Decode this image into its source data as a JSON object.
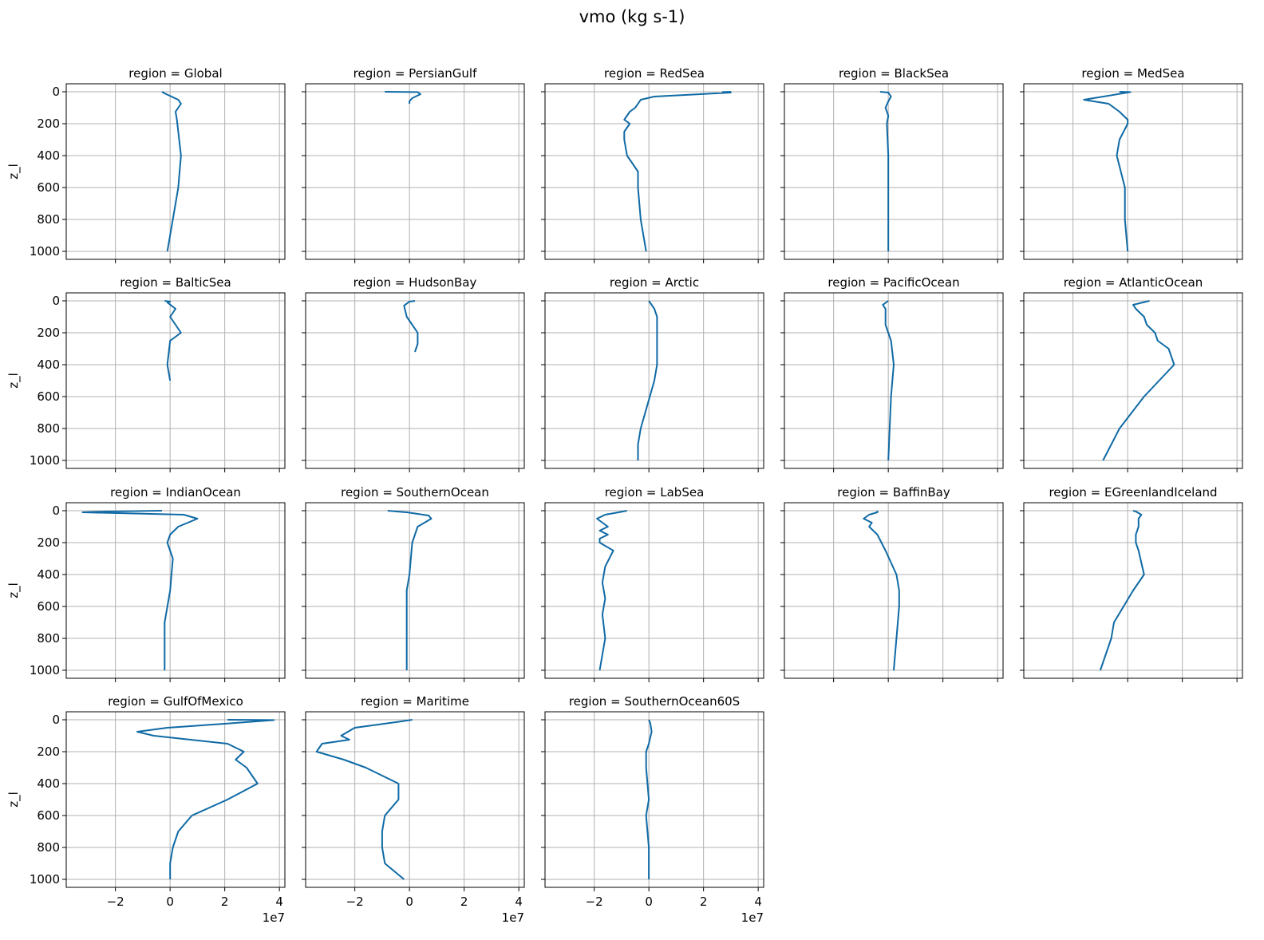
{
  "suptitle": "vmo (kg s-1)",
  "x_offset_label": "1e7",
  "chart_data": {
    "type": "line",
    "layout": "facet grid, 4 rows x 5 columns, shared axes",
    "xlim": [
      -3.8,
      4.2
    ],
    "ylim": [
      1050,
      -50
    ],
    "y_inverted": true,
    "xticks": [
      -2,
      0,
      2,
      4
    ],
    "xtick_labels": [
      "−2",
      "0",
      "2",
      "4"
    ],
    "yticks": [
      0,
      200,
      400,
      600,
      800,
      1000
    ],
    "ylabel": "z_l",
    "x_scale_note": "1e7",
    "grid": true,
    "line_color": "#0f6aa5",
    "panels": [
      {
        "title": "region = Global",
        "x": [
          -0.3,
          -0.2,
          0.3,
          0.4,
          0.2,
          0.25,
          0.3,
          0.4,
          0.3,
          0.1,
          -0.1
        ],
        "y": [
          0,
          10,
          50,
          75,
          125,
          175,
          250,
          400,
          600,
          800,
          1000
        ]
      },
      {
        "title": "region = PersianGulf",
        "x": [
          -0.9,
          0.3,
          0.4,
          0.1,
          0.0,
          0.0
        ],
        "y": [
          0,
          2,
          15,
          40,
          60,
          75
        ]
      },
      {
        "title": "region = RedSea",
        "x": [
          3.0,
          2.7,
          3.0,
          0.2,
          -0.3,
          -0.4,
          -0.5,
          -0.7,
          -0.9,
          -0.7,
          -0.9,
          -0.9,
          -0.8,
          -0.4,
          -0.4,
          -0.3,
          -0.1
        ],
        "y": [
          0,
          2,
          5,
          30,
          50,
          75,
          100,
          125,
          175,
          200,
          250,
          300,
          400,
          500,
          600,
          800,
          1000
        ]
      },
      {
        "title": "region = BlackSea",
        "x": [
          -0.3,
          0.0,
          0.1,
          0.0,
          -0.1,
          0.0,
          -0.05,
          0.0,
          0.0,
          0.0,
          0.0
        ],
        "y": [
          0,
          5,
          30,
          60,
          100,
          150,
          200,
          400,
          600,
          800,
          1000
        ]
      },
      {
        "title": "region = MedSea",
        "x": [
          -0.3,
          0.1,
          -1.6,
          -0.7,
          -0.3,
          0.0,
          0.0,
          -0.3,
          -0.4,
          -0.1,
          -0.1,
          0.0
        ],
        "y": [
          0,
          2,
          50,
          75,
          125,
          175,
          200,
          300,
          400,
          600,
          800,
          1000
        ]
      },
      {
        "title": "region = BalticSea",
        "x": [
          -0.2,
          0.0,
          -0.1,
          0.2,
          0.0,
          0.4,
          0.0,
          -0.1,
          0.0
        ],
        "y": [
          0,
          5,
          10,
          50,
          100,
          200,
          250,
          400,
          500
        ]
      },
      {
        "title": "region = HudsonBay",
        "x": [
          0.2,
          0.0,
          -0.2,
          -0.1,
          0.1,
          0.3,
          0.3,
          0.2
        ],
        "y": [
          0,
          5,
          30,
          100,
          150,
          200,
          270,
          320
        ]
      },
      {
        "title": "region = Arctic",
        "x": [
          0.0,
          0.2,
          0.3,
          0.3,
          0.3,
          0.2,
          -0.3,
          -0.4,
          -0.4
        ],
        "y": [
          0,
          50,
          100,
          200,
          400,
          500,
          800,
          900,
          1000
        ]
      },
      {
        "title": "region = PacificOcean",
        "x": [
          0.0,
          -0.2,
          -0.1,
          -0.1,
          0.1,
          0.2,
          0.1,
          0.0
        ],
        "y": [
          0,
          25,
          50,
          150,
          250,
          400,
          600,
          1000
        ]
      },
      {
        "title": "region = AtlanticOcean",
        "x": [
          0.8,
          0.2,
          0.3,
          0.6,
          0.7,
          1.0,
          1.1,
          1.5,
          1.7,
          0.6,
          -0.3,
          -0.6,
          -0.9
        ],
        "y": [
          0,
          25,
          50,
          100,
          150,
          200,
          250,
          300,
          400,
          600,
          800,
          900,
          1000
        ]
      },
      {
        "title": "region = IndianOcean",
        "x": [
          -0.3,
          -2.3,
          -3.2,
          0.5,
          1.0,
          0.3,
          0.0,
          -0.1,
          0.1,
          0.0,
          -0.2,
          -0.2,
          -0.2
        ],
        "y": [
          0,
          5,
          10,
          25,
          50,
          100,
          150,
          200,
          300,
          500,
          700,
          800,
          1000
        ]
      },
      {
        "title": "region = SouthernOcean",
        "x": [
          -0.8,
          -0.1,
          0.7,
          0.8,
          0.3,
          0.1,
          0.0,
          -0.1,
          -0.1,
          -0.1
        ],
        "y": [
          0,
          10,
          30,
          50,
          100,
          200,
          400,
          500,
          600,
          1000
        ]
      },
      {
        "title": "region = LabSea",
        "x": [
          -0.8,
          -1.1,
          -1.6,
          -1.9,
          -1.5,
          -1.8,
          -1.5,
          -1.8,
          -1.8,
          -1.3,
          -1.6,
          -1.7,
          -1.6,
          -1.7,
          -1.6,
          -1.8
        ],
        "y": [
          0,
          10,
          25,
          50,
          100,
          125,
          150,
          175,
          200,
          250,
          350,
          450,
          550,
          650,
          800,
          1000
        ]
      },
      {
        "title": "region = BaffinBay",
        "x": [
          -0.4,
          -0.4,
          -0.7,
          -0.9,
          -0.6,
          -0.7,
          -0.4,
          -0.1,
          0.3,
          0.4,
          0.4,
          0.3,
          0.2
        ],
        "y": [
          0,
          10,
          25,
          50,
          75,
          100,
          150,
          250,
          400,
          500,
          600,
          800,
          1000
        ]
      },
      {
        "title": "region = EGreenlandIceland",
        "x": [
          0.2,
          0.3,
          0.5,
          0.4,
          0.4,
          0.3,
          0.3,
          0.4,
          0.6,
          0.2,
          -0.5,
          -0.6,
          -1.0
        ],
        "y": [
          0,
          5,
          25,
          50,
          100,
          150,
          200,
          250,
          400,
          500,
          700,
          800,
          1000
        ]
      },
      {
        "title": "region = GulfOfMexico",
        "x": [
          2.1,
          3.8,
          2.0,
          -0.1,
          -1.2,
          -0.6,
          2.1,
          2.7,
          2.4,
          2.8,
          3.2,
          2.1,
          0.8,
          0.3,
          0.1,
          0.0,
          0.0
        ],
        "y": [
          0,
          2,
          25,
          50,
          75,
          100,
          150,
          200,
          250,
          300,
          400,
          500,
          600,
          700,
          800,
          900,
          1000
        ]
      },
      {
        "title": "region = Maritime",
        "x": [
          0.1,
          -0.5,
          -2.0,
          -2.5,
          -2.2,
          -3.2,
          -3.4,
          -2.4,
          -1.6,
          -0.4,
          -0.4,
          -0.9,
          -1.0,
          -1.0,
          -0.9,
          -0.2
        ],
        "y": [
          0,
          15,
          50,
          100,
          125,
          150,
          200,
          250,
          300,
          400,
          500,
          600,
          700,
          800,
          900,
          1000
        ]
      },
      {
        "title": "region = SouthernOcean60S",
        "x": [
          0.0,
          0.05,
          0.1,
          0.0,
          -0.1,
          -0.1,
          0.0,
          -0.1,
          0.0,
          0.0
        ],
        "y": [
          0,
          20,
          75,
          150,
          200,
          300,
          500,
          600,
          800,
          1000
        ]
      }
    ]
  }
}
